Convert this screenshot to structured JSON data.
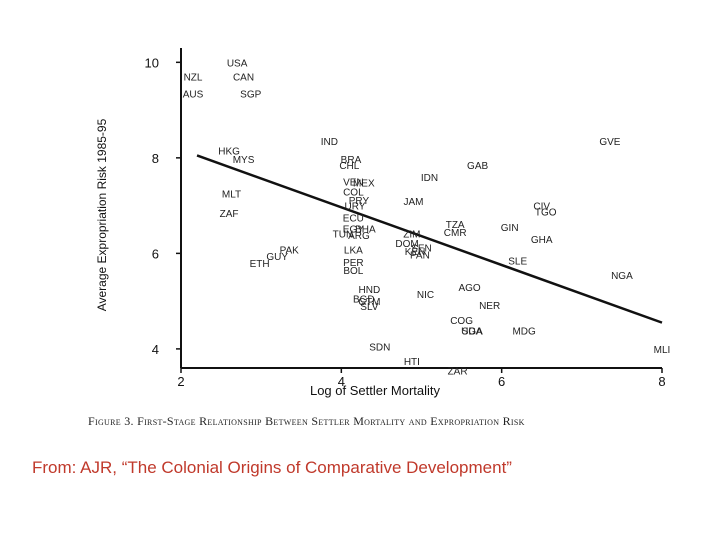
{
  "chart_data": {
    "type": "scatter",
    "title": "",
    "xlabel": "Log of Settler Mortality",
    "ylabel": "Average Expropriation Risk 1985-95",
    "xlim": [
      2,
      8
    ],
    "ylim": [
      3.6,
      10.3
    ],
    "xticks": [
      2,
      4,
      6,
      8
    ],
    "yticks": [
      4,
      6,
      8,
      10
    ],
    "grid": false,
    "legend": "none",
    "fit_line": {
      "x1": 2.2,
      "y1": 8.05,
      "x2": 8.0,
      "y2": 4.55
    },
    "points": [
      {
        "label": "USA",
        "x": 2.7,
        "y": 10.0
      },
      {
        "label": "NZL",
        "x": 2.15,
        "y": 9.7
      },
      {
        "label": "CAN",
        "x": 2.78,
        "y": 9.7
      },
      {
        "label": "AUS",
        "x": 2.15,
        "y": 9.35
      },
      {
        "label": "SGP",
        "x": 2.87,
        "y": 9.35
      },
      {
        "label": "IND",
        "x": 3.85,
        "y": 8.35
      },
      {
        "label": "GVE",
        "x": 7.35,
        "y": 8.35
      },
      {
        "label": "HKG",
        "x": 2.6,
        "y": 8.15
      },
      {
        "label": "MYS",
        "x": 2.78,
        "y": 7.98
      },
      {
        "label": "BRA",
        "x": 4.12,
        "y": 7.98
      },
      {
        "label": "CHL",
        "x": 4.1,
        "y": 7.85
      },
      {
        "label": "GAB",
        "x": 5.7,
        "y": 7.85
      },
      {
        "label": "IDN",
        "x": 5.1,
        "y": 7.6
      },
      {
        "label": "VEN",
        "x": 4.15,
        "y": 7.5
      },
      {
        "label": "MEX",
        "x": 4.28,
        "y": 7.48
      },
      {
        "label": "COL",
        "x": 4.15,
        "y": 7.3
      },
      {
        "label": "MLT",
        "x": 2.63,
        "y": 7.25
      },
      {
        "label": "JAM",
        "x": 4.9,
        "y": 7.1
      },
      {
        "label": "PRY",
        "x": 4.22,
        "y": 7.12
      },
      {
        "label": "URY",
        "x": 4.17,
        "y": 7.0
      },
      {
        "label": "CIV",
        "x": 6.5,
        "y": 7.0
      },
      {
        "label": "TGO",
        "x": 6.55,
        "y": 6.88
      },
      {
        "label": "ZAF",
        "x": 2.6,
        "y": 6.85
      },
      {
        "label": "ECU",
        "x": 4.15,
        "y": 6.75
      },
      {
        "label": "TZA",
        "x": 5.42,
        "y": 6.62
      },
      {
        "label": "GIN",
        "x": 6.1,
        "y": 6.55
      },
      {
        "label": "EGY",
        "x": 4.15,
        "y": 6.52
      },
      {
        "label": "BHA",
        "x": 4.3,
        "y": 6.52
      },
      {
        "label": "TUN",
        "x": 4.02,
        "y": 6.42
      },
      {
        "label": "ARG",
        "x": 4.22,
        "y": 6.38
      },
      {
        "label": "ZIM",
        "x": 4.88,
        "y": 6.42
      },
      {
        "label": "CMR",
        "x": 5.42,
        "y": 6.45
      },
      {
        "label": "GHA",
        "x": 6.5,
        "y": 6.3
      },
      {
        "label": "DOM",
        "x": 4.82,
        "y": 6.22
      },
      {
        "label": "SEN",
        "x": 5.0,
        "y": 6.12
      },
      {
        "label": "KEN",
        "x": 4.92,
        "y": 6.05
      },
      {
        "label": "PAN",
        "x": 4.98,
        "y": 5.98
      },
      {
        "label": "PAK",
        "x": 3.35,
        "y": 6.08
      },
      {
        "label": "LKA",
        "x": 4.15,
        "y": 6.08
      },
      {
        "label": "GUY",
        "x": 3.2,
        "y": 5.95
      },
      {
        "label": "ETH",
        "x": 2.98,
        "y": 5.8
      },
      {
        "label": "PER",
        "x": 4.15,
        "y": 5.82
      },
      {
        "label": "SLE",
        "x": 6.2,
        "y": 5.85
      },
      {
        "label": "BOL",
        "x": 4.15,
        "y": 5.65
      },
      {
        "label": "NGA",
        "x": 7.5,
        "y": 5.55
      },
      {
        "label": "HND",
        "x": 4.35,
        "y": 5.25
      },
      {
        "label": "AGO",
        "x": 5.6,
        "y": 5.3
      },
      {
        "label": "NIC",
        "x": 5.05,
        "y": 5.15
      },
      {
        "label": "BGD",
        "x": 4.28,
        "y": 5.05
      },
      {
        "label": "GTM",
        "x": 4.35,
        "y": 5.0
      },
      {
        "label": "SLV",
        "x": 4.35,
        "y": 4.9
      },
      {
        "label": "NER",
        "x": 5.85,
        "y": 4.92
      },
      {
        "label": "COG",
        "x": 5.5,
        "y": 4.6
      },
      {
        "label": "UGA",
        "x": 5.63,
        "y": 4.38
      },
      {
        "label": "SDA",
        "x": 5.63,
        "y": 4.38
      },
      {
        "label": "MDG",
        "x": 6.28,
        "y": 4.38
      },
      {
        "label": "MLI",
        "x": 8.0,
        "y": 4.0
      },
      {
        "label": "SDN",
        "x": 4.48,
        "y": 4.05
      },
      {
        "label": "HTI",
        "x": 4.88,
        "y": 3.75
      },
      {
        "label": "ZAR",
        "x": 5.45,
        "y": 3.55
      }
    ]
  },
  "caption": "Figure 3. First-Stage Relationship Between Settler Mortality and Expropriation Risk",
  "source": "From:  AJR, “The Colonial Origins of Comparative Development”"
}
